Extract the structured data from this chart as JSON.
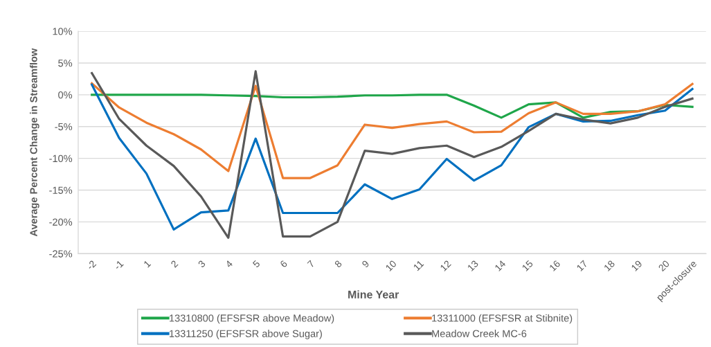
{
  "chart_data": {
    "type": "line",
    "xlabel": "Mine Year",
    "ylabel": "Average Percent Change in Streamflow",
    "categories": [
      "-2",
      "-1",
      "1",
      "2",
      "3",
      "4",
      "5",
      "6",
      "7",
      "8",
      "9",
      "10",
      "11",
      "12",
      "13",
      "14",
      "15",
      "16",
      "17",
      "18",
      "19",
      "20",
      "post-closure"
    ],
    "series": [
      {
        "name": "13310800 (EFSFSR above Meadow)",
        "color": "#1fa64a",
        "values": [
          0,
          0,
          0,
          0,
          0,
          -0.1,
          -0.2,
          -0.4,
          -0.4,
          -0.3,
          -0.1,
          -0.1,
          0,
          0,
          -1.7,
          -3.6,
          -1.5,
          -1.2,
          -3.6,
          -2.7,
          -2.6,
          -1.6,
          -1.9
        ]
      },
      {
        "name": "13311000 (EFSFSR at Stibnite)",
        "color": "#ed7d31",
        "values": [
          1.8,
          -2.0,
          -4.4,
          -6.2,
          -8.6,
          -12.0,
          1.4,
          -13.1,
          -13.1,
          -11.1,
          -4.7,
          -5.2,
          -4.6,
          -4.2,
          -5.9,
          -5.8,
          -2.9,
          -1.2,
          -3.0,
          -3.0,
          -2.6,
          -1.5,
          1.7
        ]
      },
      {
        "name": "13311250 (EFSFSR above Sugar)",
        "color": "#0070c0",
        "values": [
          1.6,
          -6.8,
          -12.4,
          -21.2,
          -18.5,
          -18.2,
          -6.9,
          -18.6,
          -18.6,
          -18.6,
          -14.1,
          -16.4,
          -14.9,
          -10.1,
          -13.5,
          -11.1,
          -5.1,
          -3.0,
          -4.2,
          -4.1,
          -3.2,
          -2.5,
          0.9
        ]
      },
      {
        "name": "Meadow Creek MC-6",
        "color": "#595959",
        "values": [
          3.4,
          -3.8,
          -8.0,
          -11.2,
          -16.0,
          -22.5,
          3.7,
          -22.3,
          -22.3,
          -20.0,
          -8.8,
          -9.3,
          -8.4,
          -8.0,
          -9.8,
          -8.2,
          -5.7,
          -3.0,
          -3.9,
          -4.5,
          -3.6,
          -1.9,
          -0.6
        ]
      }
    ],
    "ylim": [
      -25,
      10
    ],
    "yticks": [
      {
        "value": -25,
        "label": "-25%"
      },
      {
        "value": -20,
        "label": "-20%"
      },
      {
        "value": -15,
        "label": "-15%"
      },
      {
        "value": -10,
        "label": "-10%"
      },
      {
        "value": -5,
        "label": "-5%"
      },
      {
        "value": 0,
        "label": "0%"
      },
      {
        "value": 5,
        "label": "5%"
      },
      {
        "value": 10,
        "label": "10%"
      }
    ],
    "grid": "y",
    "legend": "bottom",
    "marker": "none",
    "line_style": "solid"
  }
}
